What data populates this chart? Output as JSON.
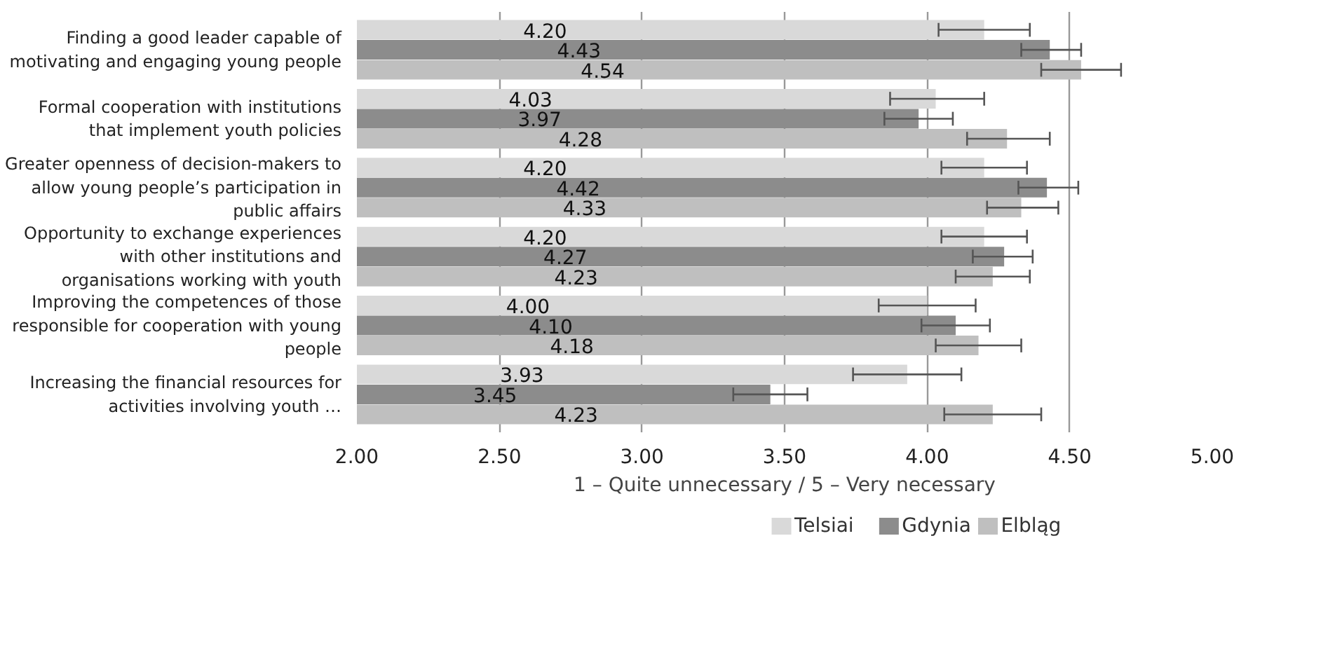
{
  "chart_data": {
    "type": "bar",
    "orientation": "horizontal",
    "xlabel": "1 – Quite unnecessary / 5 – Very necessary",
    "categories": [
      "Finding a good leader capable of motivating and engaging young people",
      "Formal cooperation with institutions that implement youth policies",
      "Greater openness of decision-makers to allow young people’s participation in public affairs",
      "Opportunity to exchange experiences with other institutions and organisations working with youth",
      "Improving the competences of those responsible for cooperation with young people",
      "Increasing the financial resources for activities involving youth …"
    ],
    "series": [
      {
        "name": "Telsiai",
        "color": "#d9d9d9",
        "values": [
          4.2,
          4.03,
          4.2,
          4.2,
          4.0,
          3.93
        ],
        "value_labels": [
          "4.20",
          "4.03",
          "4.20",
          "4.20",
          "4.00",
          "3.93"
        ],
        "errors": [
          [
            4.04,
            4.36
          ],
          [
            3.87,
            4.2
          ],
          [
            4.05,
            4.35
          ],
          [
            4.05,
            4.35
          ],
          [
            3.83,
            4.17
          ],
          [
            3.74,
            4.12
          ]
        ]
      },
      {
        "name": "Gdynia",
        "color": "#8c8c8c",
        "values": [
          4.43,
          3.97,
          4.42,
          4.27,
          4.1,
          3.45
        ],
        "value_labels": [
          "4.43",
          "3.97",
          "4.42",
          "4.27",
          "4.10",
          "3.45"
        ],
        "errors": [
          [
            4.33,
            4.54
          ],
          [
            3.85,
            4.09
          ],
          [
            4.32,
            4.53
          ],
          [
            4.16,
            4.37
          ],
          [
            3.98,
            4.22
          ],
          [
            3.32,
            3.58
          ]
        ]
      },
      {
        "name": "Elbląg",
        "color": "#bfbfbf",
        "values": [
          4.54,
          4.28,
          4.33,
          4.23,
          4.18,
          4.23
        ],
        "value_labels": [
          "4.54",
          "4.28",
          "4.33",
          "4.23",
          "4.18",
          "4.23"
        ],
        "errors": [
          [
            4.4,
            4.68
          ],
          [
            4.14,
            4.43
          ],
          [
            4.21,
            4.46
          ],
          [
            4.1,
            4.36
          ],
          [
            4.03,
            4.33
          ],
          [
            4.06,
            4.4
          ]
        ]
      }
    ],
    "xlim": [
      2.0,
      5.0
    ],
    "xticks": [
      {
        "value": 2,
        "label": "2.00"
      },
      {
        "value": 2.5,
        "label": "2.50"
      },
      {
        "value": 3,
        "label": "3.00"
      },
      {
        "value": 3.5,
        "label": "3.50"
      },
      {
        "value": 4,
        "label": "4.00"
      },
      {
        "value": 4.5,
        "label": "4.50"
      },
      {
        "value": 5,
        "label": "5.00"
      }
    ],
    "grid": "x",
    "legend": "bottom"
  }
}
